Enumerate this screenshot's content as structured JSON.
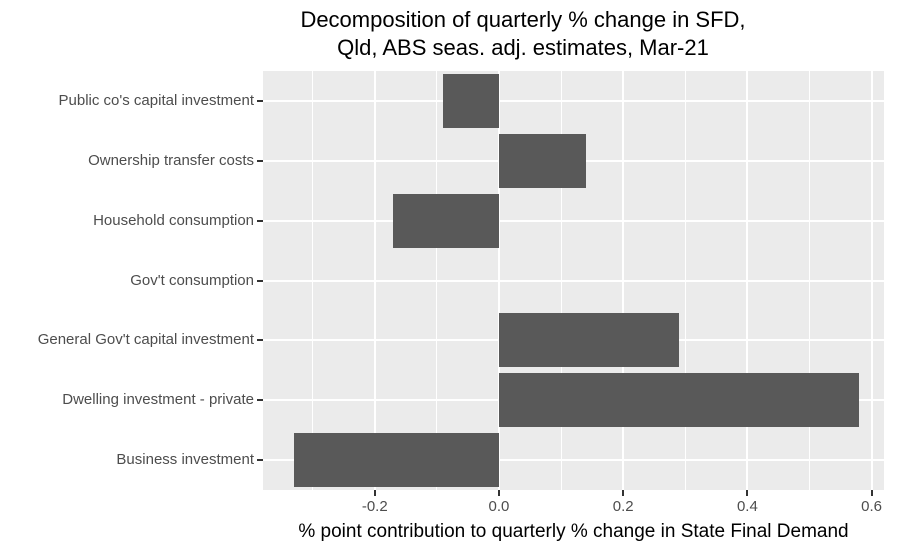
{
  "title": {
    "line1": "Decomposition of quarterly % change in SFD,",
    "line2": "Qld, ABS seas. adj. estimates, Mar-21"
  },
  "chart_data": {
    "type": "bar",
    "orientation": "horizontal",
    "title": "Decomposition of quarterly % change in SFD, Qld, ABS seas. adj. estimates, Mar-21",
    "title_lines": [
      "Decomposition of quarterly % change in SFD,",
      "Qld, ABS seas. adj. estimates, Mar-21"
    ],
    "xlabel": "% point contribution to quarterly % change in State Final Demand",
    "ylabel": "",
    "categories": [
      "Public co's capital investment",
      "Ownership transfer costs",
      "Household consumption",
      "Gov't consumption",
      "General Gov't capital investment",
      "Dwelling investment - private",
      "Business investment"
    ],
    "values": [
      -0.09,
      0.14,
      -0.17,
      0.0,
      0.29,
      0.58,
      -0.33
    ],
    "xlim": [
      -0.38,
      0.62
    ],
    "x_major_ticks": [
      -0.2,
      0.0,
      0.2,
      0.4,
      0.6
    ],
    "x_tick_labels": [
      "-0.2",
      "0.0",
      "0.2",
      "0.4",
      "0.6"
    ],
    "x_minor_ticks": [
      -0.3,
      -0.1,
      0.1,
      0.3,
      0.5
    ],
    "grid": true,
    "legend": false,
    "bar_width_fraction": 0.9,
    "colors": {
      "bar": "#595959",
      "panel_background": "#EBEBEB",
      "gridline": "#FFFFFF",
      "tick_text": "#4D4D4D",
      "tick_mark": "#333333",
      "title_text": "#000000",
      "page_background": "#FFFFFF"
    }
  }
}
